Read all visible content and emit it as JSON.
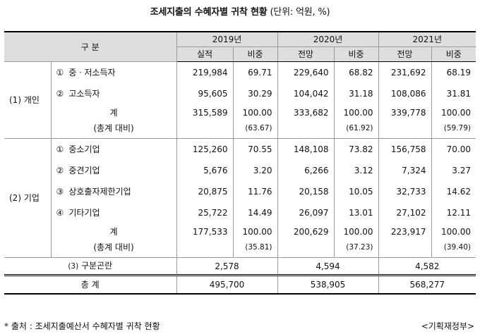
{
  "title": "조세지출의 수혜자별 귀착 현황",
  "unit": "(단위: 억원, %)",
  "header": {
    "gubun": "구 분",
    "years": [
      "2019년",
      "2020년",
      "2021년"
    ],
    "sub": [
      "실적",
      "비중",
      "전망",
      "비중",
      "전망",
      "비중"
    ]
  },
  "groups": {
    "personal": "(1) 개인",
    "corporate": "(2) 기업"
  },
  "rows": {
    "p1": {
      "marker": "①",
      "label": "중ㆍ저소득자",
      "v": [
        "219,984",
        "69.71",
        "229,640",
        "68.82",
        "231,692",
        "68.19"
      ]
    },
    "p2": {
      "marker": "②",
      "label": "고소득자",
      "v": [
        "95,605",
        "30.29",
        "104,042",
        "31.18",
        "108,086",
        "31.81"
      ]
    },
    "psum": {
      "label": "계",
      "v": [
        "315,589",
        "100.00",
        "333,682",
        "100.00",
        "339,778",
        "100.00"
      ]
    },
    "pratio": {
      "label": "(총계 대비)",
      "v": [
        "(63.67)",
        "(61.92)",
        "(59.79)"
      ]
    },
    "c1": {
      "marker": "①",
      "label": "중소기업",
      "v": [
        "125,260",
        "70.55",
        "148,108",
        "73.82",
        "156,758",
        "70.00"
      ]
    },
    "c2": {
      "marker": "②",
      "label": "중견기업",
      "v": [
        "5,676",
        "3.20",
        "6,266",
        "3.12",
        "7,324",
        "3.27"
      ]
    },
    "c3": {
      "marker": "③",
      "label": "상호출자제한기업",
      "v": [
        "20,875",
        "11.76",
        "20,158",
        "10.05",
        "32,733",
        "14.62"
      ]
    },
    "c4": {
      "marker": "④",
      "label": "기타기업",
      "v": [
        "25,722",
        "14.49",
        "26,097",
        "13.01",
        "27,102",
        "12.11"
      ]
    },
    "csum": {
      "label": "계",
      "v": [
        "177,533",
        "100.00",
        "200,629",
        "100.00",
        "223,917",
        "100.00"
      ]
    },
    "cratio": {
      "label": "(총계 대비)",
      "v": [
        "(35.81)",
        "(37.23)",
        "(39.40)"
      ]
    },
    "unclassified": {
      "marker": "(3)",
      "label": "구분곤란",
      "v": [
        "2,578",
        "4,594",
        "4,582"
      ]
    },
    "total": {
      "label": "총 계",
      "v": [
        "495,700",
        "538,905",
        "568,277"
      ]
    }
  },
  "footer": {
    "source": "* 출처 : 조세지출예산서 수혜자별 귀착 현황",
    "agency": "<기획재정부>"
  }
}
